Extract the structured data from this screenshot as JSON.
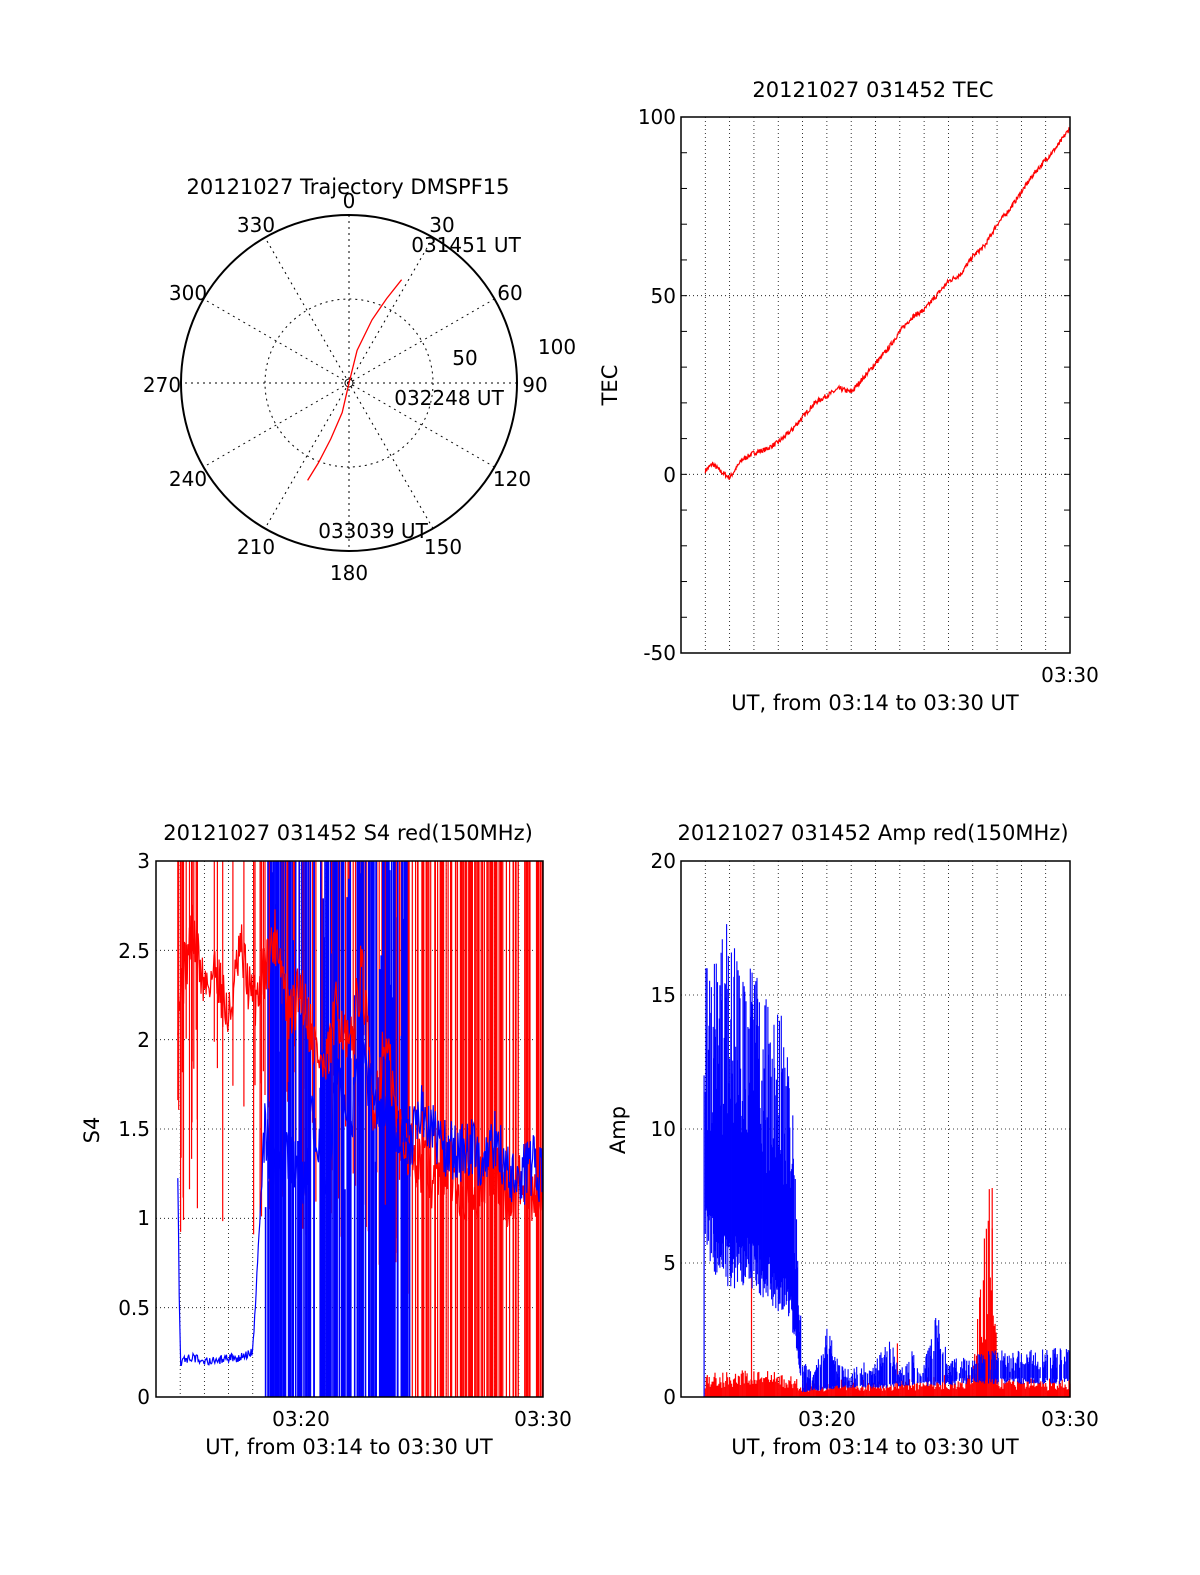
{
  "colors": {
    "red": "#ff0000",
    "blue": "#0000ff",
    "axis": "#000000",
    "grid": "#000000"
  },
  "chart_data": [
    {
      "type": "polar",
      "title": "20121027 Trajectory DMSPF15",
      "angle_labels": [
        "0",
        "30",
        "60",
        "90",
        "120",
        "150",
        "180",
        "210",
        "240",
        "270",
        "300",
        "330"
      ],
      "radius_labels": [
        "50",
        "100"
      ],
      "rlim": [
        0,
        100
      ],
      "grid": true,
      "annotations": [
        "031451 UT",
        "032248 UT",
        "033039 UT"
      ],
      "series": [
        {
          "color": "red",
          "points_az_r": [
            [
              27,
              69
            ],
            [
              24,
              55
            ],
            [
              20,
              40
            ],
            [
              14,
              20
            ],
            [
              180,
              0
            ],
            [
              193,
              18
            ],
            [
              198,
              35
            ],
            [
              201,
              51
            ],
            [
              203,
              63
            ]
          ]
        }
      ]
    },
    {
      "type": "line",
      "title": "20121027 031452 TEC",
      "ylabel": "TEC",
      "xlabel": "UT, from 03:14 to 03:30 UT",
      "ylim": [
        -50,
        100
      ],
      "yticks": [
        "100",
        "50",
        "0",
        "-50"
      ],
      "xticks": [
        "03:30"
      ],
      "xlim_minutes": [
        14,
        30
      ],
      "grid": true,
      "series": [
        {
          "color": "red",
          "x_minutes": [
            15.0,
            15.3,
            15.6,
            16.0,
            16.5,
            17.0,
            17.5,
            18.0,
            18.5,
            19.0,
            19.5,
            20.0,
            20.5,
            21.0,
            21.5,
            22.0,
            22.5,
            23.0,
            23.5,
            24.0,
            24.5,
            25.0,
            25.5,
            26.0,
            26.5,
            27.0,
            27.5,
            28.0,
            28.5,
            29.0,
            29.5,
            30.0
          ],
          "y": [
            1,
            3,
            1,
            -1,
            4,
            6,
            7,
            9,
            12,
            16,
            20,
            22,
            24,
            23,
            27,
            31,
            35,
            40,
            44,
            46,
            50,
            54,
            56,
            61,
            64,
            70,
            74,
            79,
            84,
            88,
            92,
            97
          ]
        }
      ]
    },
    {
      "type": "line",
      "title": "20121027 031452 S4 red(150MHz)",
      "ylabel": "S4",
      "xlabel": "UT, from 03:14 to 03:30 UT",
      "ylim": [
        0,
        3
      ],
      "yticks": [
        "3",
        "2.5",
        "2",
        "1.5",
        "1",
        "0.5",
        "0"
      ],
      "xticks": [
        "03:20",
        "03:30"
      ],
      "xlim_minutes": [
        14,
        30
      ],
      "grid": true,
      "series": [
        {
          "color": "red",
          "description_range": [
            0.0,
            3.0
          ],
          "x_minutes": [
            14.9,
            15.5,
            16.0,
            16.5,
            17.0,
            17.5,
            18.0,
            18.5,
            19.0,
            19.5,
            20.0,
            20.5,
            21.0,
            21.5,
            22.0,
            22.5,
            23.0,
            23.5,
            24.0,
            24.5,
            25.0,
            25.5,
            26.0,
            26.5,
            27.0,
            27.5,
            28.0,
            28.5,
            29.0,
            29.5,
            30.0
          ],
          "y": [
            2.2,
            2.6,
            2.3,
            2.4,
            2.1,
            2.5,
            2.2,
            2.4,
            2.6,
            2.1,
            2.3,
            2.0,
            1.8,
            2.2,
            1.9,
            2.4,
            1.6,
            2.0,
            1.5,
            1.4,
            1.3,
            1.2,
            1.3,
            1.2,
            1.1,
            1.2,
            1.3,
            1.1,
            1.2,
            1.1,
            1.2
          ]
        },
        {
          "color": "blue",
          "x_minutes": [
            14.9,
            15.0,
            15.5,
            16.0,
            16.5,
            17.0,
            17.5,
            18.0,
            18.5,
            19.0,
            19.5,
            20.0,
            20.5,
            21.0,
            21.5,
            22.0,
            22.5,
            23.0,
            23.5,
            24.0,
            24.5,
            25.0,
            25.5,
            26.0,
            26.5,
            27.0,
            27.5,
            28.0,
            28.5,
            29.0,
            29.5,
            30.0
          ],
          "y": [
            1.4,
            0.2,
            0.22,
            0.2,
            0.2,
            0.22,
            0.22,
            0.25,
            1.5,
            1.2,
            1.4,
            1.1,
            1.6,
            1.2,
            1.8,
            1.5,
            1.9,
            1.7,
            1.6,
            1.5,
            1.4,
            1.6,
            1.5,
            1.4,
            1.35,
            1.4,
            1.3,
            1.45,
            1.3,
            1.2,
            1.3,
            1.25
          ]
        }
      ]
    },
    {
      "type": "line",
      "title": "20121027 031452 Amp red(150MHz)",
      "ylabel": "Amp",
      "xlabel": "UT, from 03:14 to 03:30 UT",
      "ylim": [
        0,
        20
      ],
      "yticks": [
        "20",
        "15",
        "10",
        "5",
        "0"
      ],
      "xticks": [
        "03:20",
        "03:30"
      ],
      "xlim_minutes": [
        14,
        30
      ],
      "grid": true,
      "series": [
        {
          "color": "red",
          "x_minutes": [
            15.0,
            16.0,
            17.0,
            18.0,
            19.0,
            20.0,
            21.0,
            22.0,
            23.0,
            24.0,
            25.0,
            26.0,
            26.8,
            27.0,
            28.0,
            29.0,
            30.0
          ],
          "y": [
            0.8,
            0.8,
            0.9,
            0.8,
            0.5,
            0.5,
            0.6,
            0.5,
            0.6,
            0.6,
            0.7,
            0.7,
            7.8,
            0.6,
            0.6,
            0.6,
            0.6
          ]
        },
        {
          "color": "blue",
          "x_minutes": [
            15.0,
            15.5,
            16.0,
            16.5,
            17.0,
            17.5,
            18.0,
            18.5,
            19.0,
            19.5,
            20.0,
            20.5,
            21.0,
            21.5,
            22.0,
            22.5,
            23.0,
            23.5,
            24.0,
            24.5,
            25.0,
            25.5,
            26.0,
            26.5,
            27.0,
            27.5,
            28.0,
            28.5,
            29.0,
            29.5,
            30.0
          ],
          "y_low": [
            6,
            5.5,
            5,
            5,
            5,
            4.5,
            4,
            3.5,
            0.2,
            0.3,
            0.3,
            0.4,
            0.4,
            0.4,
            0.4,
            0.4,
            0.5,
            0.5,
            0.5,
            0.5,
            0.5,
            0.6,
            0.6,
            0.6,
            0.6,
            0.6,
            0.6,
            0.6,
            0.6,
            0.6,
            0.6
          ],
          "y_high": [
            18,
            17,
            18.5,
            16.5,
            17,
            15,
            15,
            13,
            1.5,
            1,
            2.8,
            1.2,
            1,
            1.3,
            1.3,
            2.5,
            1.1,
            1.8,
            1.2,
            3.3,
            1.4,
            1.6,
            1.5,
            1.8,
            1.8,
            1.7,
            1.8,
            1.9,
            1.8,
            1.9,
            1.9
          ]
        }
      ]
    }
  ]
}
